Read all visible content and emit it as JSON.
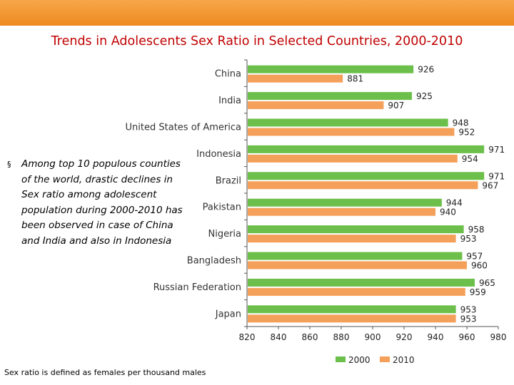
{
  "header": {
    "accent_color": "#ee8a1e"
  },
  "title": "Trends in Adolescents Sex Ratio in Selected Countries, 2000-2010",
  "bullet": {
    "symbol": "§",
    "text": "Among top 10 populous counties of the world, drastic declines in Sex ratio among adolescent population during 2000-2010 has been observed in case of China and India  and also in Indonesia"
  },
  "footnote": "Sex ratio is defined as females per thousand males",
  "chart_data": {
    "type": "bar",
    "orientation": "horizontal",
    "title": "Trends in Adolescents Sex Ratio in Selected Countries, 2000-2010",
    "categories": [
      "China",
      "India",
      "United States of America",
      "Indonesia",
      "Brazil",
      "Pakistan",
      "Nigeria",
      "Bangladesh",
      "Russian Federation",
      "Japan"
    ],
    "series": [
      {
        "name": "2000",
        "color": "#6cbf4a",
        "values": [
          926,
          925,
          948,
          971,
          971,
          944,
          958,
          957,
          965,
          953
        ]
      },
      {
        "name": "2010",
        "color": "#f5a05a",
        "values": [
          881,
          907,
          952,
          954,
          967,
          940,
          953,
          960,
          959,
          953
        ]
      }
    ],
    "xlim": [
      820,
      980
    ],
    "xticks": [
      820,
      840,
      860,
      880,
      900,
      920,
      940,
      960,
      980
    ],
    "xlabel": "",
    "ylabel": "",
    "legend": "bottom-right"
  }
}
